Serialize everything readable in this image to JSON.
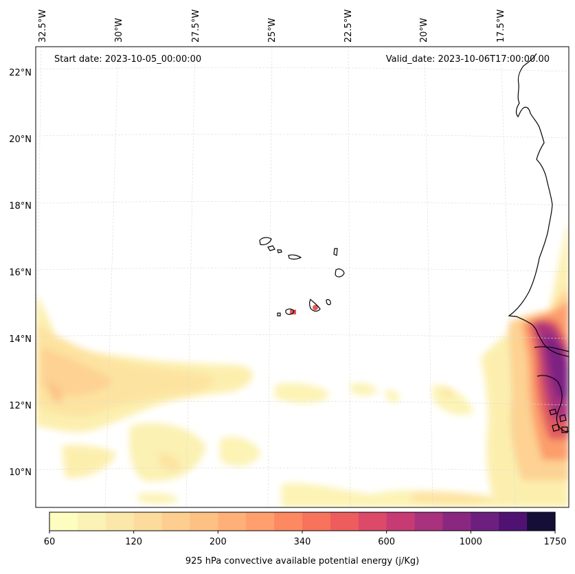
{
  "map": {
    "start_date": "Start date: 2023-10-05_00:00:00",
    "valid_date": "Valid_date: 2023-10-06T17:00:00.00",
    "lon_labels": [
      "32.5°W",
      "30°W",
      "27.5°W",
      "25°W",
      "22.5°W",
      "20°W",
      "17.5°W"
    ],
    "lat_labels": [
      "22°N",
      "20°N",
      "18°N",
      "16°N",
      "14°N",
      "12°N",
      "10°N"
    ],
    "gridlines": true
  },
  "colorbar": {
    "title": "925 hPa convective available potential energy (j/Kg)",
    "tick_labels": [
      "60",
      "120",
      "200",
      "340",
      "600",
      "1000",
      "1750"
    ],
    "colors": [
      "#fcfdbf",
      "#fbf3b6",
      "#fbe7a9",
      "#fcdb9c",
      "#fdce90",
      "#fec184",
      "#feb078",
      "#fe9f6d",
      "#fc8961",
      "#f7735c",
      "#ee5d5d",
      "#dd4968",
      "#c73b74",
      "#a8327d",
      "#8a2881",
      "#6d1f80",
      "#4f1272",
      "#150e37"
    ]
  }
}
